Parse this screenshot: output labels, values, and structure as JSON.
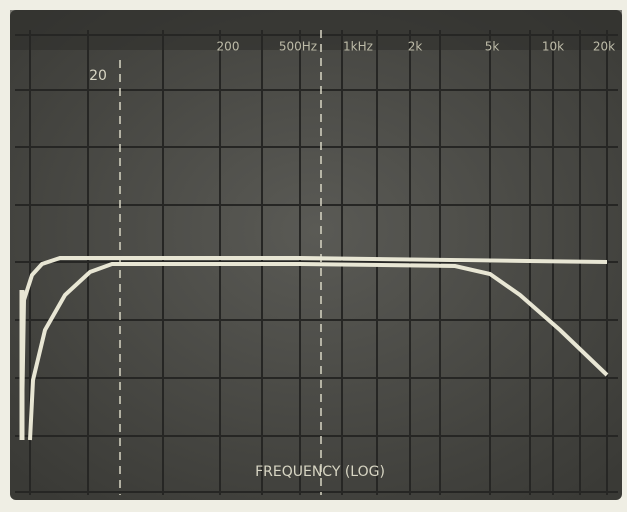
{
  "screen": {
    "cursor_label": "20",
    "top_labels": [
      "200",
      "500Hz",
      "1kHz",
      "2k",
      "5k",
      "10k",
      "20k"
    ],
    "axis_label": "FREQUENCY (LOG)"
  }
}
